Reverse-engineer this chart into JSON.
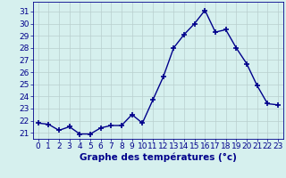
{
  "hours": [
    0,
    1,
    2,
    3,
    4,
    5,
    6,
    7,
    8,
    9,
    10,
    11,
    12,
    13,
    14,
    15,
    16,
    17,
    18,
    19,
    20,
    21,
    22,
    23
  ],
  "temps": [
    21.8,
    21.7,
    21.2,
    21.5,
    20.9,
    20.9,
    21.4,
    21.6,
    21.6,
    22.5,
    21.8,
    23.7,
    25.6,
    28.0,
    29.1,
    30.0,
    31.1,
    29.3,
    29.5,
    28.0,
    26.7,
    24.9,
    23.4,
    23.3
  ],
  "line_color": "#00008B",
  "marker": "+",
  "marker_size": 4,
  "line_width": 1.0,
  "xlabel": "Graphe des températures (°c)",
  "ylabel_ticks": [
    21,
    22,
    23,
    24,
    25,
    26,
    27,
    28,
    29,
    30,
    31
  ],
  "ylim": [
    20.5,
    31.8
  ],
  "xlim": [
    -0.5,
    23.5
  ],
  "bg_color": "#d6f0ee",
  "grid_color": "#b8cece",
  "axis_label_color": "#00008B",
  "tick_color": "#00008B",
  "xlabel_fontsize": 7.5,
  "tick_fontsize": 6.5
}
